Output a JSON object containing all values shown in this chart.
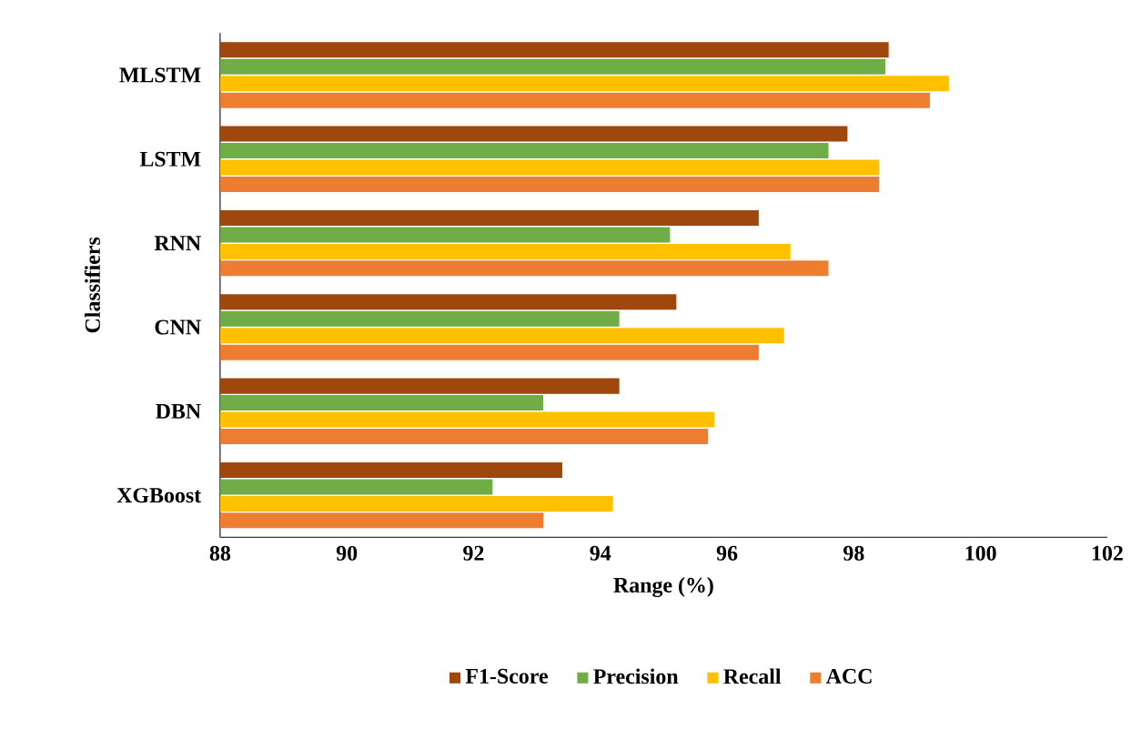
{
  "chart_data": {
    "type": "bar",
    "orientation": "horizontal",
    "xlabel": "Range (%)",
    "ylabel": "Classifiers",
    "categories": [
      "MLSTM",
      "LSTM",
      "RNN",
      "CNN",
      "DBN",
      "XGBoost"
    ],
    "series": [
      {
        "name": "F1-Score",
        "color": "#9e480e",
        "values": [
          98.55,
          97.9,
          96.5,
          95.2,
          94.3,
          93.4
        ]
      },
      {
        "name": "Precision",
        "color": "#70ad47",
        "values": [
          98.5,
          97.6,
          95.1,
          94.3,
          93.1,
          92.3
        ]
      },
      {
        "name": "Recall",
        "color": "#ffc000",
        "values": [
          99.5,
          98.4,
          97.0,
          96.9,
          95.8,
          94.2
        ]
      },
      {
        "name": "ACC",
        "color": "#ed7d31",
        "values": [
          99.2,
          98.4,
          97.6,
          96.5,
          95.7,
          93.1
        ]
      }
    ],
    "xlim": [
      88,
      102
    ],
    "xticks": [
      88,
      90,
      92,
      94,
      96,
      98,
      100,
      102
    ],
    "grid": false,
    "legend": "bottom"
  }
}
